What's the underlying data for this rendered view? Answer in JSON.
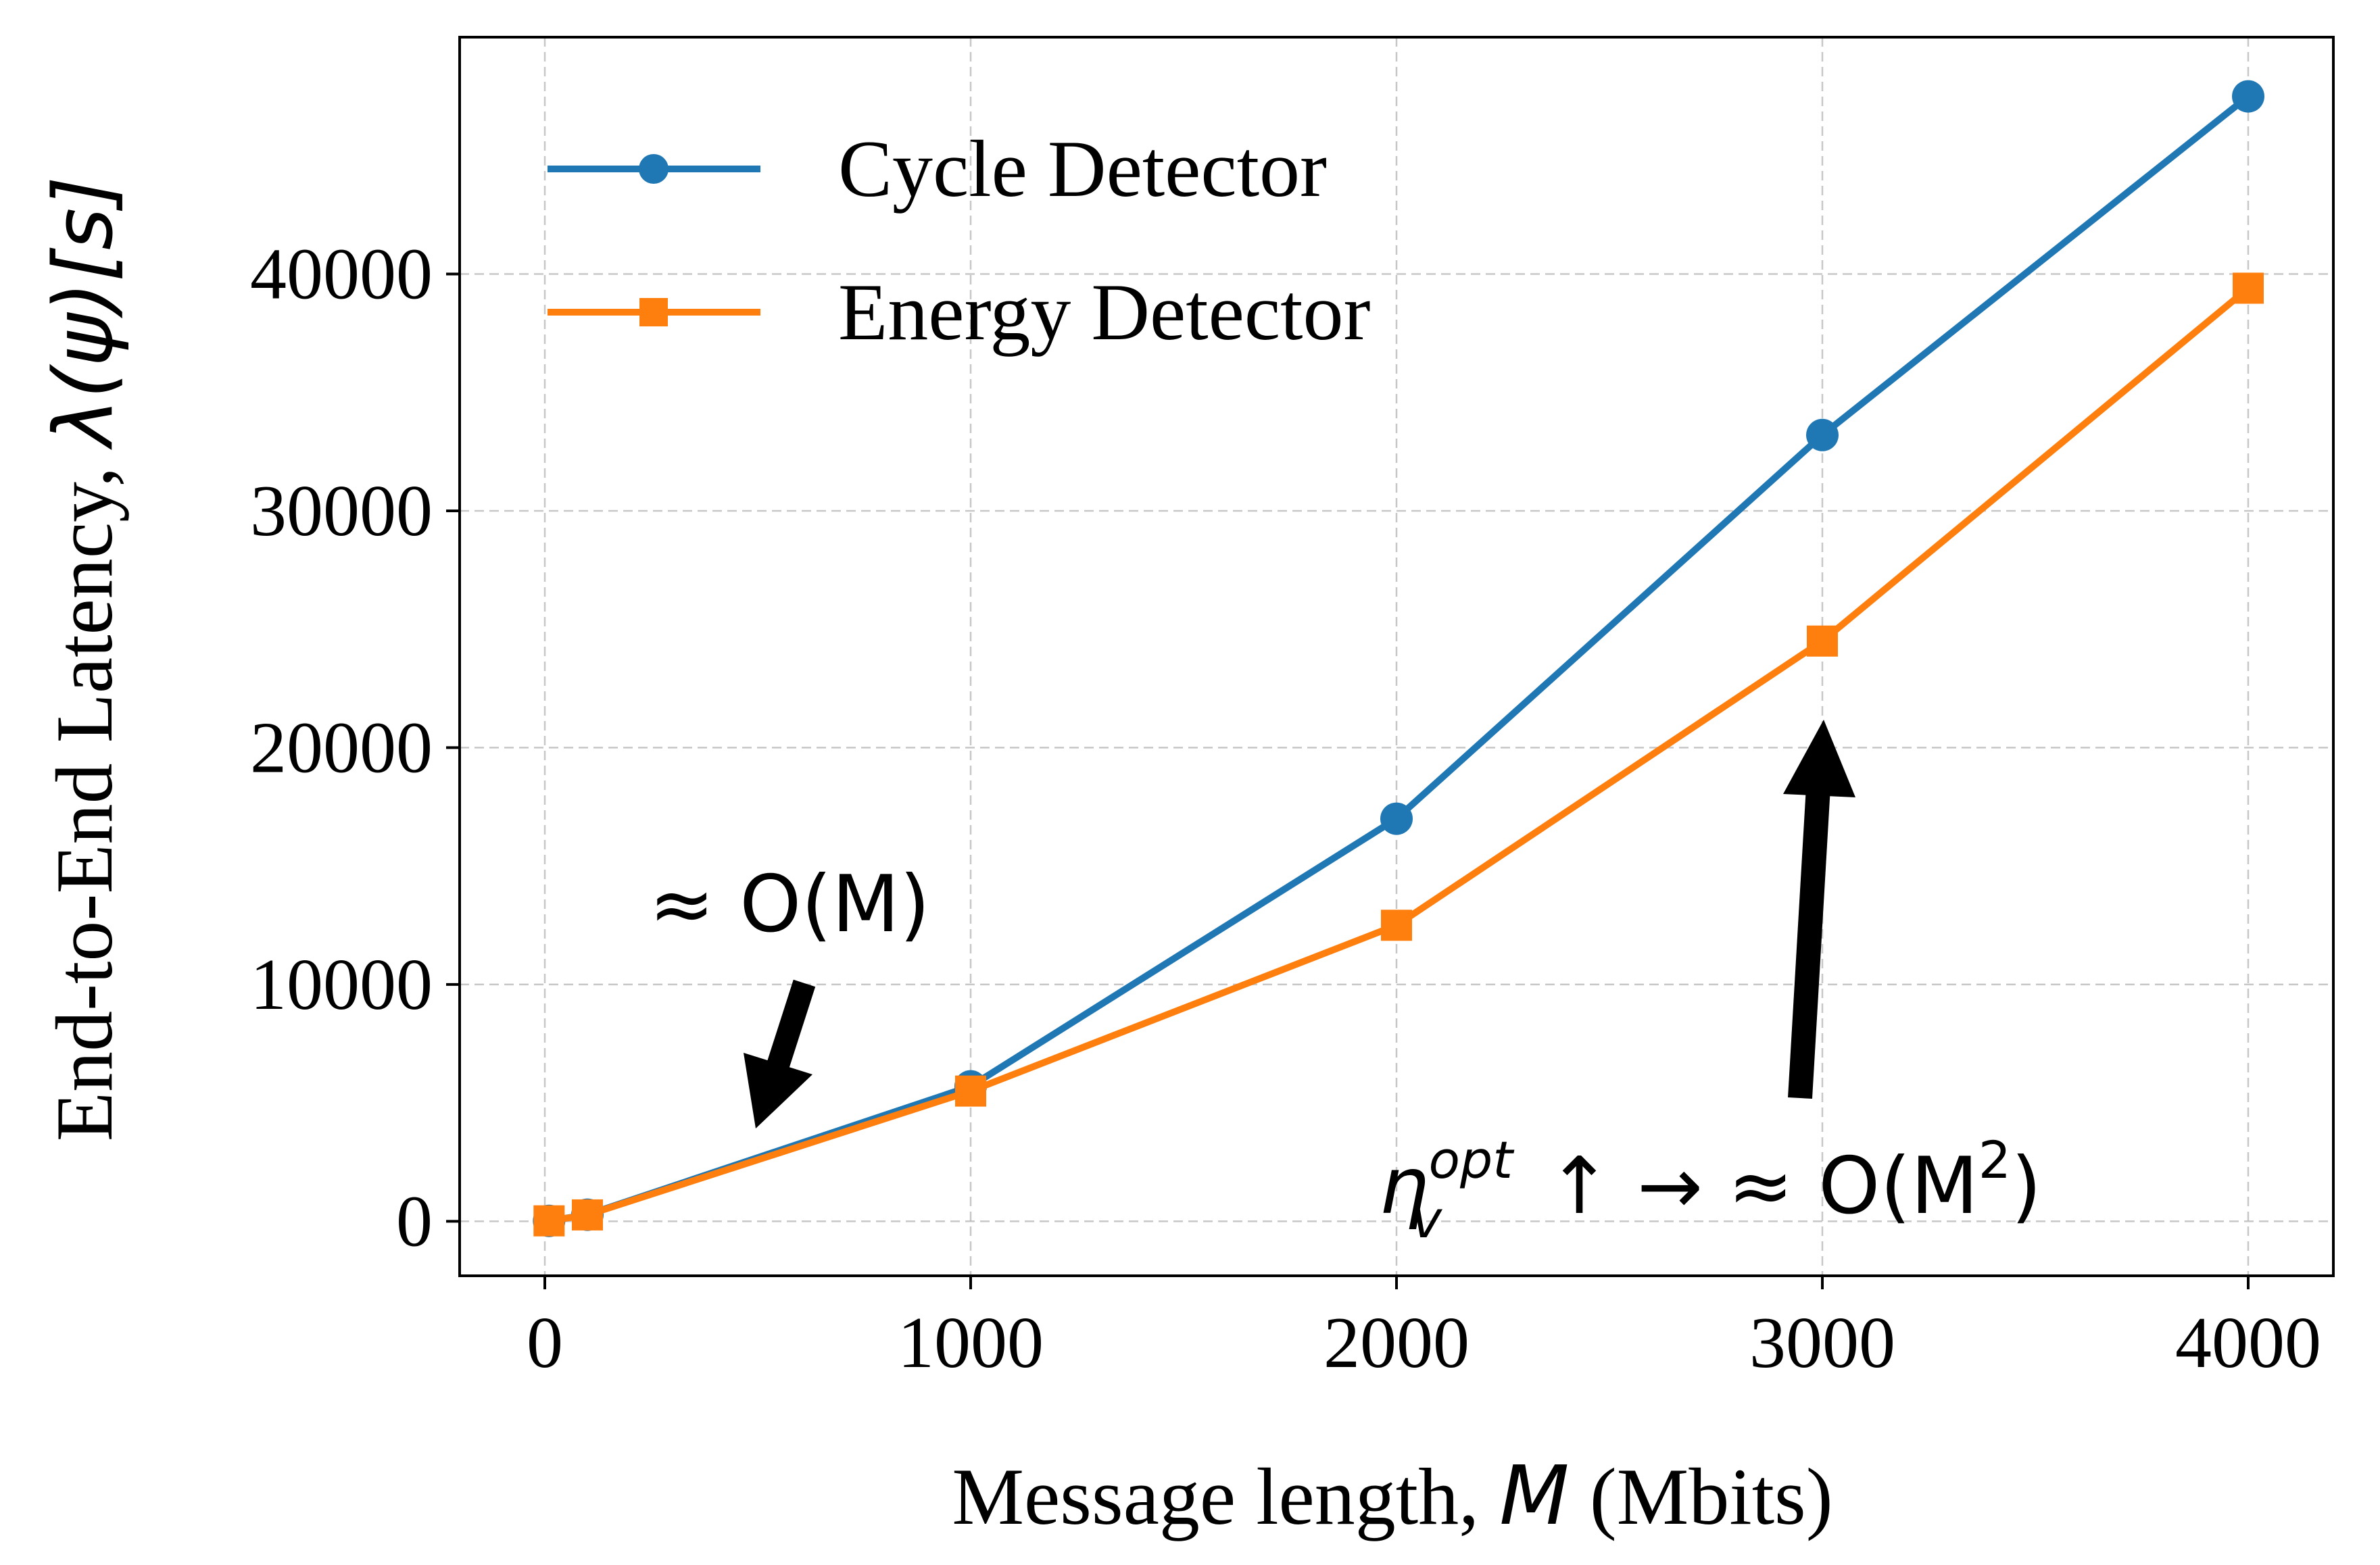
{
  "chart_data": {
    "type": "line",
    "xlabel_text": "Message length, ",
    "xlabel_var": "M",
    "xlabel_unit": " (Mbits)",
    "ylabel_text": "End-to-End Latency, ",
    "ylabel_var": "λ(ψ)[s]",
    "xlim": [
      -200,
      4200
    ],
    "ylim": [
      -2300,
      50000
    ],
    "xticks": [
      0,
      1000,
      2000,
      3000,
      4000
    ],
    "xtick_labels": [
      "0",
      "1000",
      "2000",
      "3000",
      "4000"
    ],
    "yticks": [
      0,
      10000,
      20000,
      30000,
      40000
    ],
    "ytick_labels": [
      "0",
      "10000",
      "20000",
      "30000",
      "40000"
    ],
    "grid": true,
    "legend_position": "top-left",
    "series": [
      {
        "name": "Cycle Detector",
        "color": "#1f77b4",
        "marker": "circle",
        "x": [
          10,
          100,
          1000,
          2000,
          3000,
          4000
        ],
        "y": [
          20,
          280,
          5700,
          17000,
          33200,
          47500
        ]
      },
      {
        "name": "Energy Detector",
        "color": "#ff7f0e",
        "marker": "square",
        "x": [
          10,
          100,
          1000,
          2000,
          3000,
          4000
        ],
        "y": [
          20,
          270,
          5500,
          12500,
          24500,
          39400
        ]
      }
    ],
    "annotations": [
      {
        "text": "≈ O(M)"
      },
      {
        "text_eta": "η",
        "text_sup": "opt",
        "text_sub": "v",
        "text_rest": " ↑ → ≈ O(M",
        "text_sup2": "2",
        "text_end": ")"
      }
    ]
  }
}
